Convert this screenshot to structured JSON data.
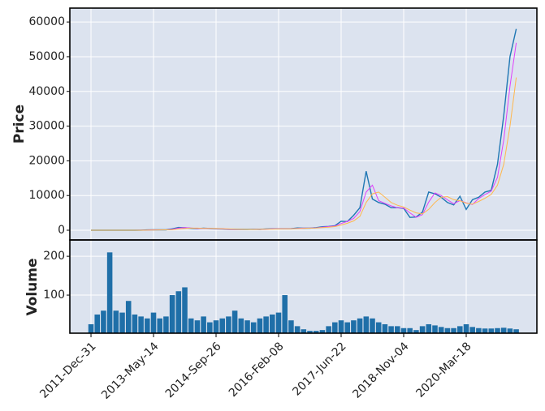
{
  "chart_data": [
    {
      "type": "line",
      "ylabel": "Price",
      "x": [
        0,
        50,
        100,
        150,
        200,
        250,
        300,
        350,
        400,
        450,
        500,
        550,
        600,
        650,
        700,
        750,
        800,
        850,
        900,
        950,
        1000,
        1050,
        1100,
        1150,
        1200,
        1250,
        1300,
        1350,
        1400,
        1450,
        1500,
        1550,
        1600,
        1650,
        1700,
        1750,
        1800,
        1850,
        1900,
        1950,
        2000,
        2050,
        2100,
        2150,
        2200,
        2250,
        2300,
        2350,
        2400,
        2450,
        2500,
        2550,
        2600,
        2650,
        2700,
        2750,
        2800,
        2850,
        2900,
        2950,
        3000,
        3050,
        3100,
        3150,
        3200,
        3250,
        3300,
        3350,
        3400
      ],
      "series": [
        {
          "color": "#1f77b4",
          "values": [
            5,
            5,
            5,
            6,
            10,
            12,
            11,
            13,
            20,
            100,
            120,
            110,
            130,
            400,
            800,
            700,
            550,
            450,
            600,
            500,
            400,
            350,
            250,
            230,
            240,
            230,
            280,
            240,
            380,
            430,
            400,
            420,
            450,
            650,
            580,
            620,
            750,
            1000,
            1100,
            1300,
            2600,
            2500,
            4300,
            6500,
            17000,
            9000,
            8000,
            7500,
            6500,
            6500,
            6300,
            3700,
            3800,
            5200,
            11000,
            10500,
            9500,
            8000,
            7300,
            9800,
            6000,
            8800,
            9500,
            11000,
            11500,
            19000,
            33000,
            50000,
            58000
          ]
        },
        {
          "color": "#e040fb",
          "values": [
            5,
            5,
            5,
            5.5,
            8,
            11,
            11.5,
            12,
            16,
            60,
            110,
            115,
            120,
            265,
            600,
            750,
            625,
            500,
            525,
            550,
            450,
            375,
            300,
            240,
            235,
            235,
            255,
            260,
            310,
            405,
            415,
            410,
            435,
            550,
            615,
            600,
            685,
            875,
            1050,
            1200,
            1950,
            2550,
            3400,
            5400,
            11000,
            13000,
            8500,
            7750,
            7000,
            6500,
            6400,
            5000,
            3750,
            4500,
            8100,
            10750,
            10000,
            8750,
            7650,
            8550,
            7900,
            7400,
            9150,
            10250,
            11250,
            15250,
            26000,
            41500,
            54000
          ]
        },
        {
          "color": "#ffb74d",
          "values": [
            5,
            5,
            5,
            5,
            6,
            8,
            10,
            11,
            13,
            30,
            60,
            90,
            115,
            150,
            350,
            500,
            600,
            600,
            550,
            530,
            490,
            450,
            380,
            300,
            260,
            240,
            245,
            250,
            290,
            330,
            380,
            410,
            430,
            480,
            550,
            600,
            650,
            750,
            900,
            1050,
            1500,
            2000,
            2700,
            4000,
            8000,
            10500,
            11000,
            9500,
            8000,
            7200,
            6700,
            5800,
            5000,
            4700,
            6000,
            8000,
            9500,
            9700,
            8800,
            8500,
            7800,
            7500,
            8300,
            9200,
            10300,
            13000,
            19000,
            30000,
            44000
          ]
        }
      ],
      "xlim": [
        -169,
        3565
      ],
      "xticks": [
        0,
        500,
        1000,
        1500,
        2000,
        2500,
        3000
      ],
      "ylim": [
        -2800,
        64000
      ],
      "yticks": [
        0,
        10000,
        20000,
        30000,
        40000,
        50000,
        60000
      ],
      "grid": true
    },
    {
      "type": "bar",
      "ylabel": "Volume",
      "x": [
        0,
        50,
        100,
        150,
        200,
        250,
        300,
        350,
        400,
        450,
        500,
        550,
        600,
        650,
        700,
        750,
        800,
        850,
        900,
        950,
        1000,
        1050,
        1100,
        1150,
        1200,
        1250,
        1300,
        1350,
        1400,
        1450,
        1500,
        1550,
        1600,
        1650,
        1700,
        1750,
        1800,
        1850,
        1900,
        1950,
        2000,
        2050,
        2100,
        2150,
        2200,
        2250,
        2300,
        2350,
        2400,
        2450,
        2500,
        2550,
        2600,
        2650,
        2700,
        2750,
        2800,
        2850,
        2900,
        2950,
        3000,
        3050,
        3100,
        3150,
        3200,
        3250,
        3300,
        3350,
        3400
      ],
      "values": [
        25,
        50,
        60,
        210,
        60,
        55,
        85,
        50,
        45,
        40,
        55,
        40,
        45,
        100,
        110,
        120,
        40,
        35,
        45,
        30,
        35,
        40,
        45,
        60,
        40,
        35,
        30,
        40,
        45,
        50,
        55,
        100,
        35,
        20,
        12,
        8,
        8,
        10,
        20,
        30,
        35,
        30,
        35,
        40,
        45,
        40,
        30,
        25,
        20,
        20,
        15,
        15,
        10,
        20,
        25,
        22,
        18,
        15,
        15,
        20,
        25,
        18,
        15,
        14,
        14,
        15,
        16,
        14,
        12
      ],
      "color": "#1f6fa8",
      "xlim": [
        -169,
        3565
      ],
      "xticks": [
        {
          "value": 0,
          "label": "2011-Dec-31"
        },
        {
          "value": 500,
          "label": "2013-May-14"
        },
        {
          "value": 1000,
          "label": "2014-Sep-26"
        },
        {
          "value": 1500,
          "label": "2016-Feb-08"
        },
        {
          "value": 2000,
          "label": "2017-Jun-22"
        },
        {
          "value": 2500,
          "label": "2018-Nov-04"
        },
        {
          "value": 3000,
          "label": "2020-Mar-18"
        }
      ],
      "ylim": [
        2,
        242
      ],
      "yticks": [
        100,
        200
      ],
      "grid": true
    }
  ]
}
